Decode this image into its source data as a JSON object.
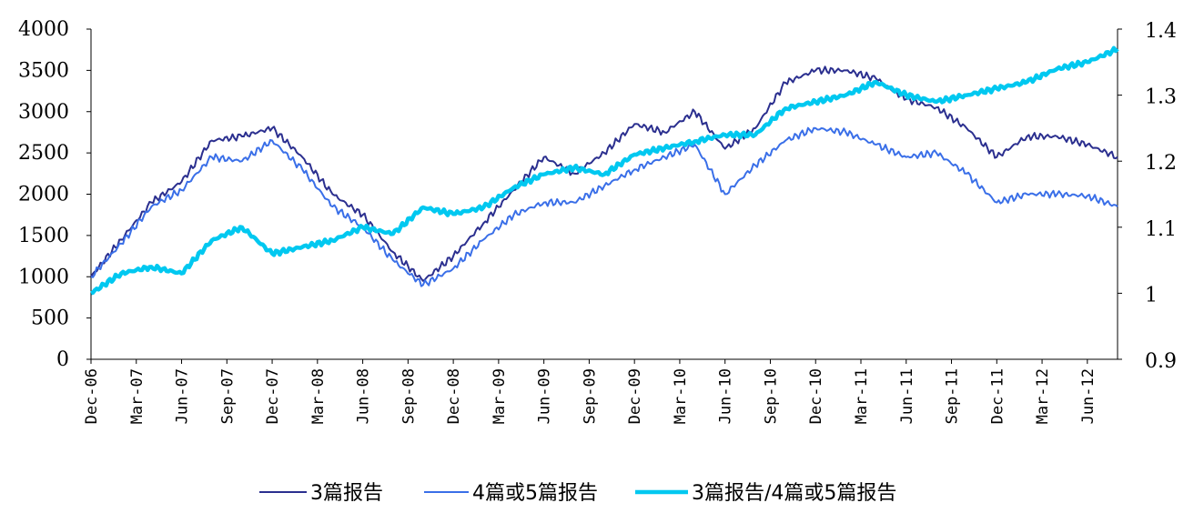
{
  "chart_data": {
    "type": "line",
    "title": "",
    "xlabel": "",
    "ylabel": "",
    "legend_position": "bottom",
    "grid": false,
    "x_ticks": [
      "Dec-06",
      "Mar-07",
      "Jun-07",
      "Sep-07",
      "Dec-07",
      "Mar-08",
      "Jun-08",
      "Sep-08",
      "Dec-08",
      "Mar-09",
      "Jun-09",
      "Sep-09",
      "Dec-09",
      "Mar-10",
      "Jun-10",
      "Sep-10",
      "Dec-10",
      "Mar-11",
      "Jun-11",
      "Sep-11",
      "Dec-11",
      "Mar-12",
      "Jun-12"
    ],
    "x_range": [
      "Dec-06",
      "Aug-12"
    ],
    "y_left": {
      "ticks": [
        "0",
        "500",
        "1000",
        "1500",
        "2000",
        "2500",
        "3000",
        "3500",
        "4000"
      ],
      "range": [
        0,
        4000
      ]
    },
    "y_right": {
      "ticks": [
        "0.9",
        "1",
        "1.1",
        "1.2",
        "1.3",
        "1.4"
      ],
      "range": [
        0.9,
        1.4
      ]
    },
    "x": [
      "Dec-06",
      "Feb-07",
      "Apr-07",
      "Jun-07",
      "Aug-07",
      "Oct-07",
      "Dec-07",
      "Feb-08",
      "Apr-08",
      "Jun-08",
      "Aug-08",
      "Oct-08",
      "Dec-08",
      "Feb-09",
      "Apr-09",
      "Jun-09",
      "Aug-09",
      "Oct-09",
      "Dec-09",
      "Feb-10",
      "Apr-10",
      "Jun-10",
      "Aug-10",
      "Oct-10",
      "Dec-10",
      "Feb-11",
      "Apr-11",
      "Jun-11",
      "Aug-11",
      "Oct-11",
      "Dec-11",
      "Feb-12",
      "Apr-12",
      "Jun-12",
      "Aug-12"
    ],
    "series": [
      {
        "name": "3篇报告",
        "axis": "left",
        "color": "#2b2f8f",
        "values": [
          1000,
          1450,
          1900,
          2150,
          2650,
          2700,
          2800,
          2450,
          2000,
          1750,
          1300,
          950,
          1250,
          1650,
          2050,
          2450,
          2250,
          2500,
          2850,
          2750,
          3000,
          2550,
          2800,
          3350,
          3500,
          3500,
          3400,
          3150,
          3050,
          2800,
          2450,
          2700,
          2700,
          2600,
          2450
        ]
      },
      {
        "name": "4篇或5篇报告",
        "axis": "left",
        "color": "#3a6fe8",
        "values": [
          1000,
          1400,
          1850,
          2050,
          2450,
          2400,
          2650,
          2300,
          1850,
          1600,
          1200,
          900,
          1100,
          1450,
          1750,
          1900,
          1900,
          2100,
          2300,
          2450,
          2600,
          2000,
          2350,
          2650,
          2800,
          2750,
          2600,
          2450,
          2500,
          2250,
          1900,
          2000,
          2000,
          1980,
          1850
        ]
      },
      {
        "name": "3篇报告/4篇或5篇报告",
        "axis": "right",
        "color": "#00c8f0",
        "values": [
          1.0,
          1.03,
          1.04,
          1.03,
          1.08,
          1.1,
          1.06,
          1.07,
          1.08,
          1.1,
          1.09,
          1.13,
          1.12,
          1.13,
          1.16,
          1.18,
          1.19,
          1.18,
          1.21,
          1.22,
          1.23,
          1.24,
          1.24,
          1.28,
          1.29,
          1.3,
          1.32,
          1.3,
          1.29,
          1.3,
          1.31,
          1.32,
          1.34,
          1.35,
          1.37
        ]
      }
    ]
  }
}
